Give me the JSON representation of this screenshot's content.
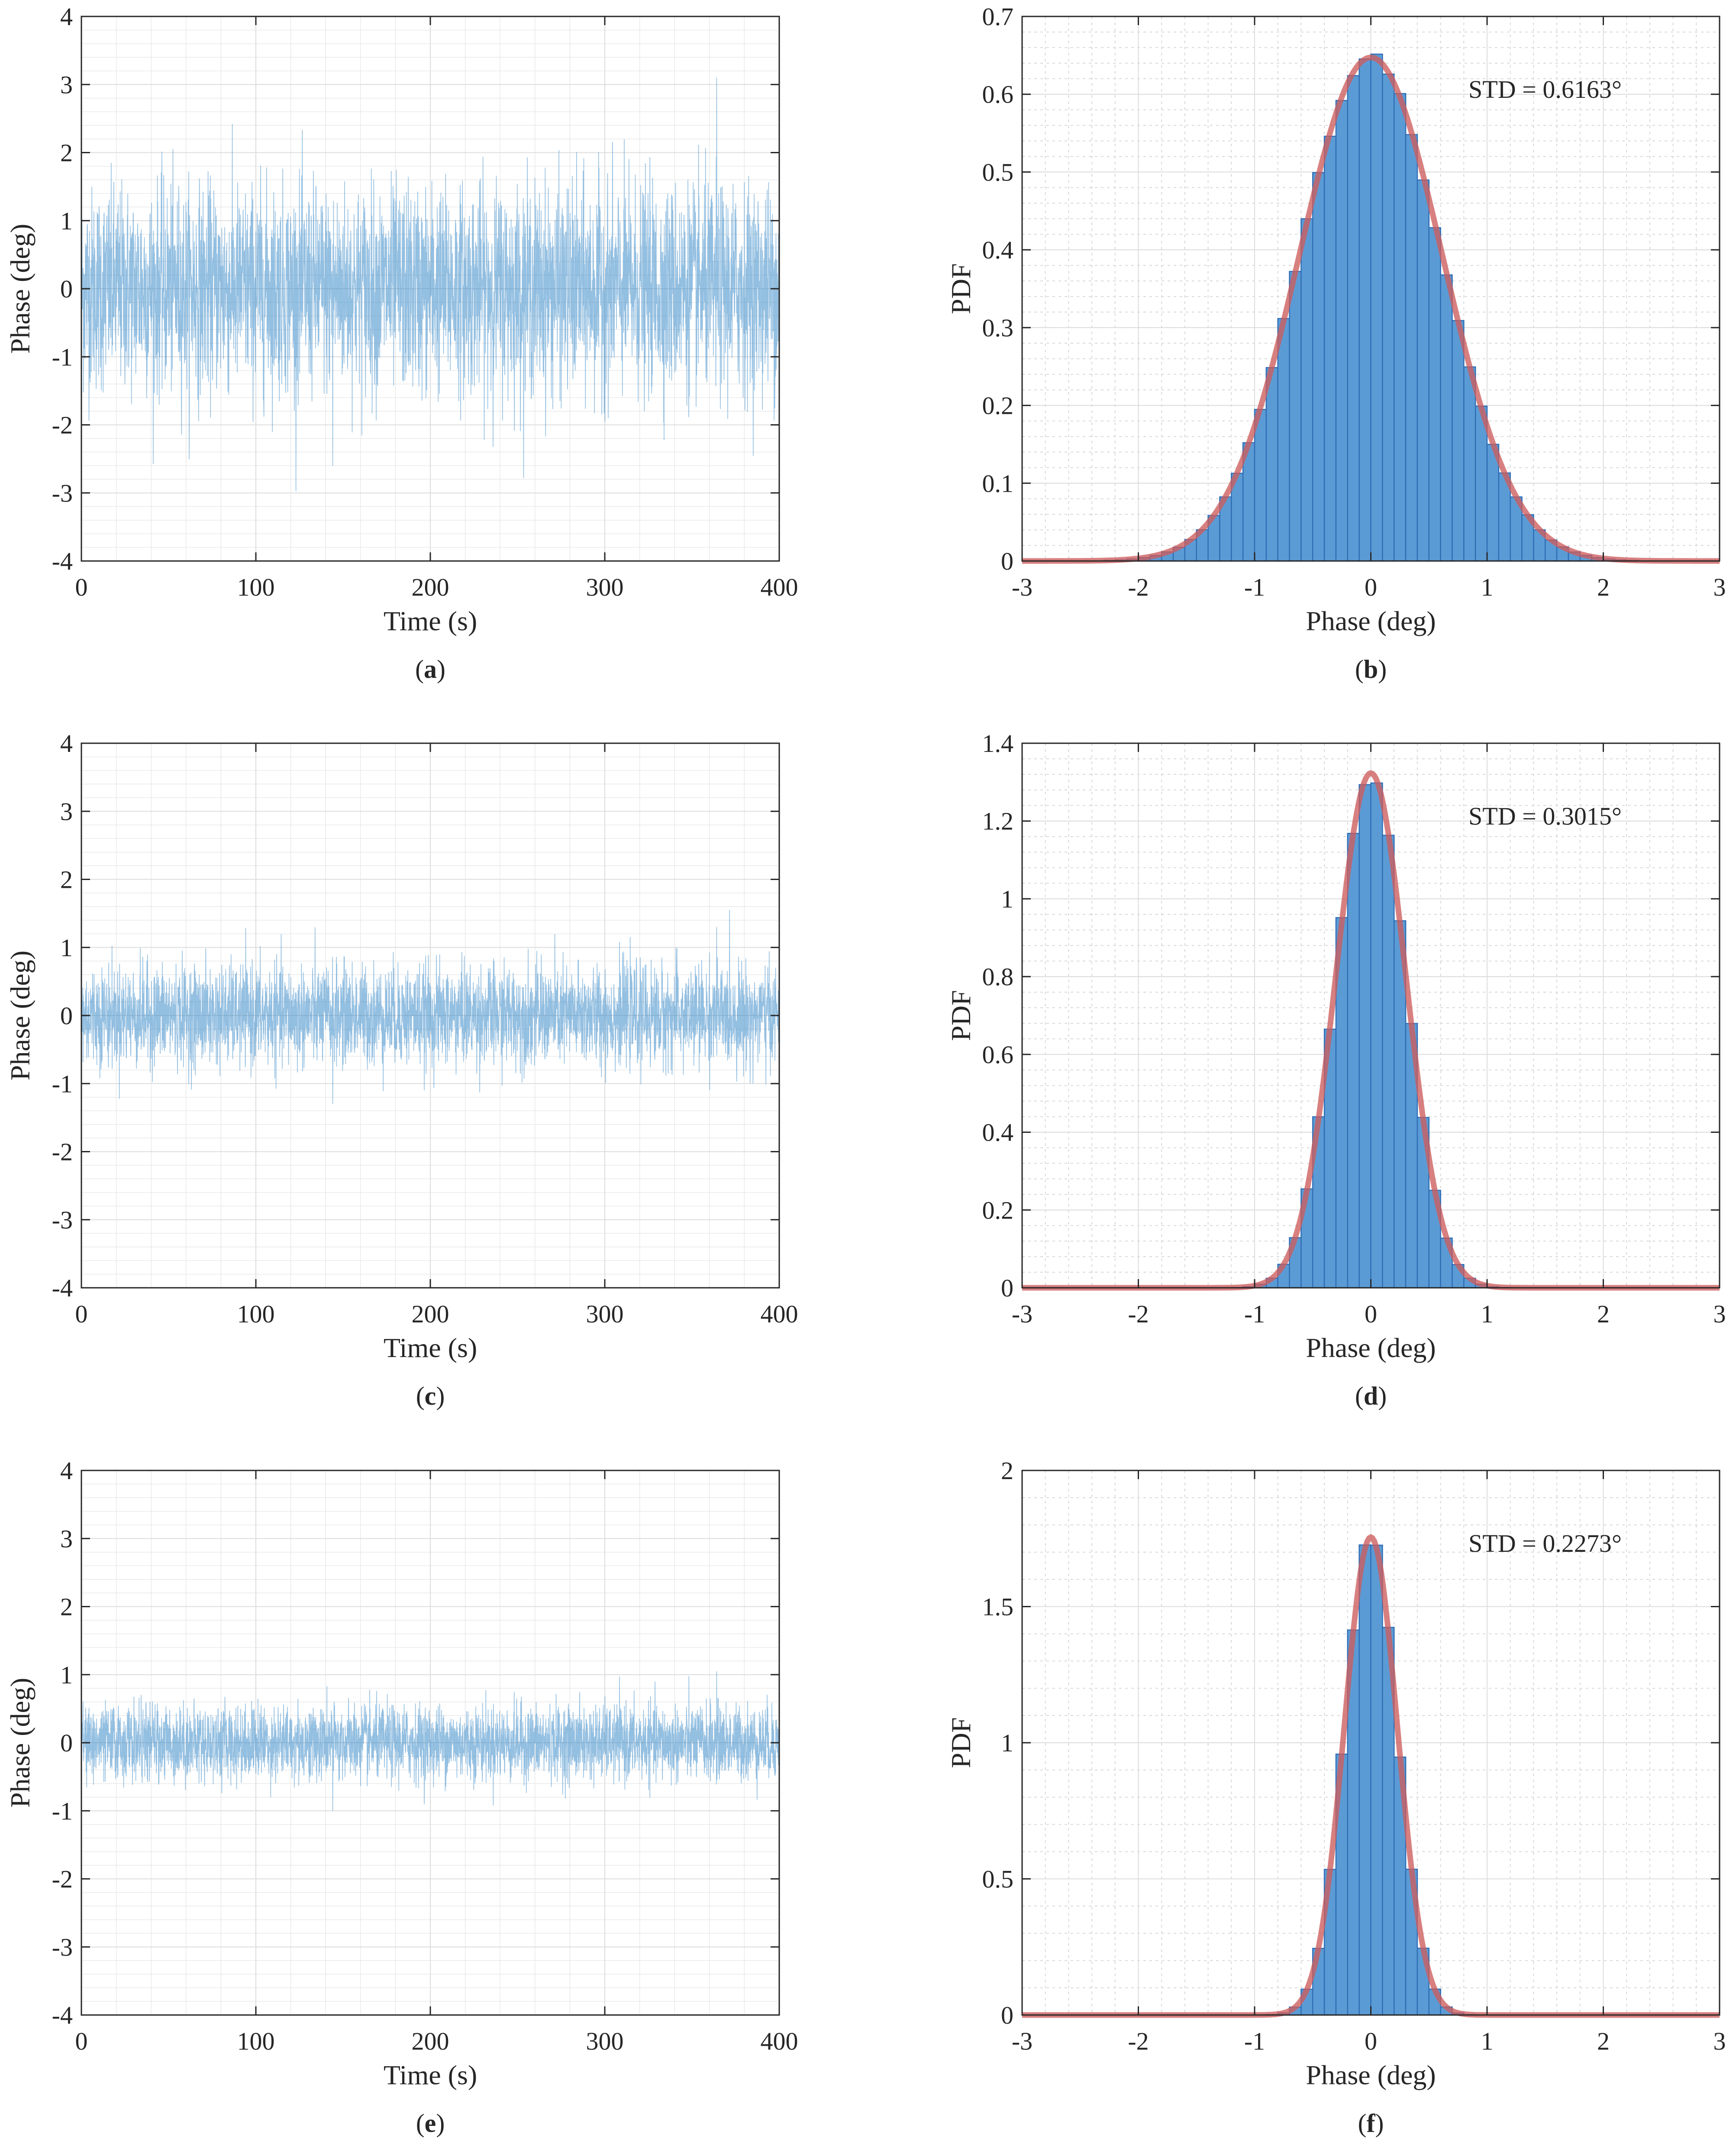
{
  "chart_data": [
    {
      "id": "a",
      "type": "line",
      "caption": "a",
      "title": "",
      "xlabel": "Time (s)",
      "ylabel": "Phase (deg)",
      "xlim": [
        0,
        400
      ],
      "ylim": [
        -4,
        4
      ],
      "xticks": [
        "0",
        "100",
        "200",
        "300",
        "400"
      ],
      "yticks": [
        "-4",
        "-3",
        "-2",
        "-1",
        "0",
        "1",
        "2",
        "3",
        "4"
      ],
      "series": [
        {
          "name": "phase",
          "std": 0.6163,
          "mean": 0,
          "peaks": [
            3.1,
            -2.6
          ]
        }
      ],
      "grid": true
    },
    {
      "id": "b",
      "type": "bar",
      "caption": "b",
      "title": "",
      "xlabel": "Phase (deg)",
      "ylabel": "PDF",
      "xlim": [
        -3,
        3
      ],
      "ylim": [
        0,
        0.7
      ],
      "xticks": [
        "-3",
        "-2",
        "-1",
        "0",
        "1",
        "2",
        "3"
      ],
      "yticks": [
        "0",
        "0.1",
        "0.2",
        "0.3",
        "0.4",
        "0.5",
        "0.6",
        "0.7"
      ],
      "annotation": "STD = 0.6163°",
      "histogram": {
        "std": 0.6163,
        "bin_width": 0.1,
        "bin_range": [
          -2.3,
          2.3
        ]
      },
      "fit": {
        "name": "Gaussian fit",
        "mean": 0,
        "std": 0.6163
      },
      "grid": true
    },
    {
      "id": "c",
      "type": "line",
      "caption": "c",
      "title": "",
      "xlabel": "Time (s)",
      "ylabel": "Phase (deg)",
      "xlim": [
        0,
        400
      ],
      "ylim": [
        -4,
        4
      ],
      "xticks": [
        "0",
        "100",
        "200",
        "300",
        "400"
      ],
      "yticks": [
        "-4",
        "-3",
        "-2",
        "-1",
        "0",
        "1",
        "2",
        "3",
        "4"
      ],
      "series": [
        {
          "name": "phase",
          "std": 0.3015,
          "mean": 0,
          "peaks": [
            1.3,
            -1.3
          ]
        }
      ],
      "grid": true
    },
    {
      "id": "d",
      "type": "bar",
      "caption": "d",
      "title": "",
      "xlabel": "Phase (deg)",
      "ylabel": "PDF",
      "xlim": [
        -3,
        3
      ],
      "ylim": [
        0,
        1.4
      ],
      "xticks": [
        "-3",
        "-2",
        "-1",
        "0",
        "1",
        "2",
        "3"
      ],
      "yticks": [
        "0",
        "0.2",
        "0.4",
        "0.6",
        "0.8",
        "1",
        "1.2",
        "1.4"
      ],
      "annotation": "STD = 0.3015°",
      "histogram": {
        "std": 0.3015,
        "bin_width": 0.1,
        "bin_range": [
          -1.2,
          1.2
        ]
      },
      "fit": {
        "name": "Gaussian fit",
        "mean": 0,
        "std": 0.3015
      },
      "grid": true
    },
    {
      "id": "e",
      "type": "line",
      "caption": "e",
      "title": "",
      "xlabel": "Time (s)",
      "ylabel": "Phase (deg)",
      "xlim": [
        0,
        400
      ],
      "ylim": [
        -4,
        4
      ],
      "xticks": [
        "0",
        "100",
        "200",
        "300",
        "400"
      ],
      "yticks": [
        "-4",
        "-3",
        "-2",
        "-1",
        "0",
        "1",
        "2",
        "3",
        "4"
      ],
      "series": [
        {
          "name": "phase",
          "std": 0.2273,
          "mean": 0,
          "peaks": [
            1.05,
            -1.0
          ]
        }
      ],
      "grid": true
    },
    {
      "id": "f",
      "type": "bar",
      "caption": "f",
      "title": "",
      "xlabel": "Phase (deg)",
      "ylabel": "PDF",
      "xlim": [
        -3,
        3
      ],
      "ylim": [
        0,
        2
      ],
      "xticks": [
        "-3",
        "-2",
        "-1",
        "0",
        "1",
        "2",
        "3"
      ],
      "yticks": [
        "0",
        "0.5",
        "1",
        "1.5",
        "2"
      ],
      "annotation": "STD = 0.2273°",
      "histogram": {
        "std": 0.2273,
        "bin_width": 0.1,
        "bin_range": [
          -1.0,
          1.0
        ]
      },
      "fit": {
        "name": "Gaussian fit",
        "mean": 0,
        "std": 0.2273
      },
      "grid": true
    }
  ],
  "colors": {
    "trace": "#3a8bc9",
    "bar_fill": "#5b9bd5",
    "bar_edge": "#2f6db5",
    "fit": "#cd5c5c",
    "axis": "#262626"
  }
}
